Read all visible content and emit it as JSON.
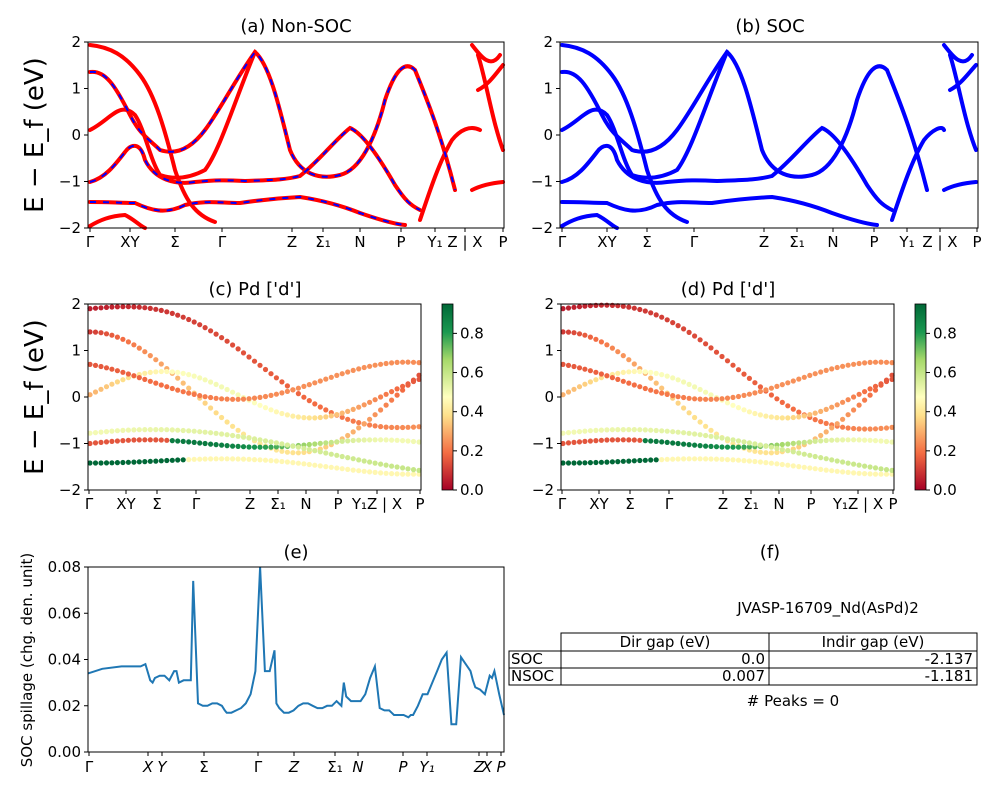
{
  "chart_data": [
    {
      "id": "a",
      "type": "line",
      "title": "(a) Non-SOC",
      "ylabel": "E − E_f (eV)",
      "ylim": [
        -2,
        2
      ],
      "yticks": [
        "−2",
        "−1",
        "0",
        "1",
        "2"
      ],
      "xticks": [
        "Γ",
        "XY",
        "Σ",
        "Γ",
        "Z",
        "Σ₁",
        "N",
        "P",
        "Y₁",
        "Z | X",
        "P"
      ],
      "series": [
        {
          "name": "bands",
          "color": "#ff0000",
          "style": "solid",
          "description": "Non-SOC band structure (red) overlaid with SOC bands (blue, dashed)"
        }
      ]
    },
    {
      "id": "b",
      "type": "line",
      "title": "(b) SOC",
      "ylim": [
        -2,
        2
      ],
      "yticks": [
        "−2",
        "−1",
        "0",
        "1",
        "2"
      ],
      "xticks": [
        "Γ",
        "XY",
        "Σ",
        "Γ",
        "Z",
        "Σ₁",
        "N",
        "P",
        "Y₁",
        "Z | X",
        "P"
      ],
      "series": [
        {
          "name": "bands",
          "color": "#0000ff"
        }
      ]
    },
    {
      "id": "c",
      "type": "scatter",
      "title": "(c)  Pd ['d']",
      "ylabel": "E − E_f (eV)",
      "ylim": [
        -2,
        2
      ],
      "yticks": [
        "−2",
        "−1",
        "0",
        "1",
        "2"
      ],
      "xticks": [
        "Γ",
        "XY",
        "Σ",
        "Γ",
        "Z",
        "Σ₁",
        "N",
        "P",
        "Y₁Z | X",
        "P"
      ],
      "colorbar": {
        "cmap": "RdYlGn",
        "range": [
          0.0,
          0.95
        ],
        "ticks": [
          "0.0",
          "0.2",
          "0.4",
          "0.6",
          "0.8"
        ]
      }
    },
    {
      "id": "d",
      "type": "scatter",
      "title": "(d) Pd ['d']",
      "ylim": [
        -2,
        2
      ],
      "yticks": [
        "−2",
        "−1",
        "0",
        "1",
        "2"
      ],
      "xticks": [
        "Γ",
        "XY",
        "Σ",
        "Γ",
        "Z",
        "Σ₁",
        "N",
        "P",
        "Y₁Z | X",
        "P"
      ],
      "colorbar": {
        "cmap": "RdYlGn",
        "range": [
          0.0,
          0.95
        ],
        "ticks": [
          "0.0",
          "0.2",
          "0.4",
          "0.6",
          "0.8"
        ]
      }
    },
    {
      "id": "e",
      "type": "line",
      "title": "(e)",
      "ylabel": "SOC spillage (chg. den. unit)",
      "ylim": [
        0.0,
        0.08
      ],
      "yticks": [
        "0.00",
        "0.02",
        "0.04",
        "0.06",
        "0.08"
      ],
      "xticks": [
        "Γ",
        "X",
        "Y",
        "Σ",
        "Γ",
        "Z",
        "Σ₁",
        "N",
        "P",
        "Y₁",
        "Z",
        "X",
        "P"
      ],
      "x": [
        0,
        3,
        7,
        11,
        12,
        13,
        13.5,
        14,
        15,
        16,
        17,
        18,
        18.5,
        19,
        20,
        21,
        21.5,
        22,
        23,
        24,
        25,
        26,
        27,
        28,
        28.6,
        29,
        29.5,
        30,
        31,
        32,
        33,
        34,
        35,
        36,
        37,
        38,
        39,
        39.4,
        40,
        41,
        42,
        43,
        44,
        45,
        46,
        47,
        48,
        49,
        50,
        51,
        52,
        53,
        53.5,
        54,
        55,
        56,
        57,
        58,
        59,
        60,
        61,
        62,
        63,
        63.5,
        64,
        65,
        66,
        67,
        67.5,
        68,
        69,
        70,
        71,
        72,
        73,
        74,
        75,
        76,
        77,
        78,
        79,
        80,
        80.5,
        81,
        82,
        83,
        84,
        84.5,
        85,
        86,
        87
      ],
      "values": [
        0.034,
        0.036,
        0.037,
        0.037,
        0.038,
        0.031,
        0.03,
        0.032,
        0.033,
        0.033,
        0.031,
        0.035,
        0.035,
        0.03,
        0.031,
        0.031,
        0.031,
        0.074,
        0.021,
        0.02,
        0.02,
        0.021,
        0.021,
        0.02,
        0.018,
        0.017,
        0.017,
        0.017,
        0.018,
        0.019,
        0.021,
        0.025,
        0.035,
        0.08,
        0.035,
        0.035,
        0.044,
        0.021,
        0.019,
        0.017,
        0.017,
        0.018,
        0.02,
        0.021,
        0.021,
        0.02,
        0.019,
        0.019,
        0.02,
        0.02,
        0.022,
        0.02,
        0.03,
        0.024,
        0.022,
        0.022,
        0.022,
        0.025,
        0.032,
        0.037,
        0.019,
        0.018,
        0.018,
        0.017,
        0.016,
        0.016,
        0.016,
        0.015,
        0.016,
        0.016,
        0.02,
        0.025,
        0.025,
        0.03,
        0.035,
        0.04,
        0.043,
        0.012,
        0.012,
        0.041,
        0.038,
        0.035,
        0.031,
        0.028,
        0.027,
        0.025,
        0.033,
        0.032,
        0.035,
        0.025,
        0.016
      ],
      "xlim": [
        0,
        87
      ],
      "color": "#1f77b4"
    },
    {
      "id": "f",
      "type": "table",
      "title": "(f)",
      "material": "JVASP-16709_Nd(AsPd)2",
      "columns": [
        "Dir gap (eV)",
        "Indir gap (eV)"
      ],
      "rows": [
        {
          "label": "SOC",
          "values": [
            "0.0",
            "-2.137"
          ]
        },
        {
          "label": "NSOC",
          "values": [
            "0.007",
            "-1.181"
          ]
        }
      ],
      "note": "# Peaks = 0"
    }
  ]
}
